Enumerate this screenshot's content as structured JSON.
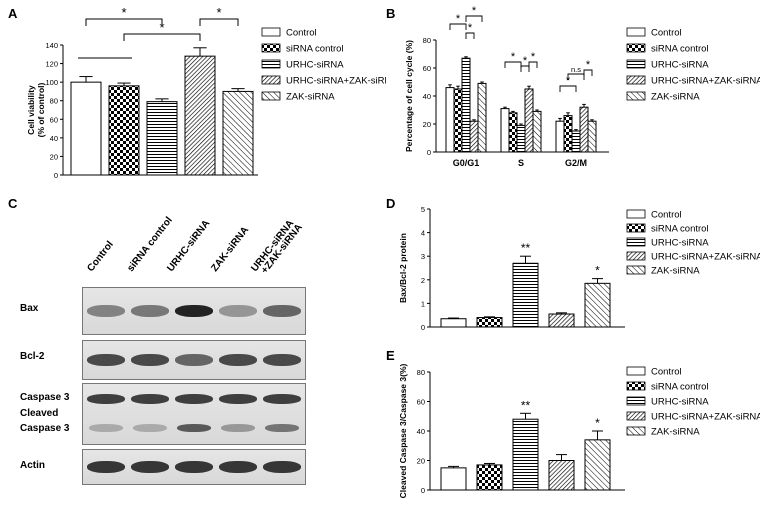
{
  "panel_letters": {
    "A": "A",
    "B": "B",
    "C": "C",
    "D": "D",
    "E": "E"
  },
  "legend_items": [
    {
      "label": "Control",
      "pattern": "none"
    },
    {
      "label": "siRNA control",
      "pattern": "check"
    },
    {
      "label": "URHC-siRNA",
      "pattern": "horiz"
    },
    {
      "label": "URHC-siRNA+ZAK-siRNA",
      "pattern": "dense"
    },
    {
      "label": "ZAK-siRNA",
      "pattern": "diag"
    }
  ],
  "chart_data": [
    {
      "id": "A",
      "type": "bar",
      "ylabel": "Cell viability\n(% of control)",
      "ylim": [
        0,
        140
      ],
      "yticks": [
        0,
        20,
        40,
        60,
        80,
        100,
        120,
        140
      ],
      "categories": [
        "Control",
        "siRNA control",
        "URHC-siRNA",
        "URHC-siRNA+ZAK-siRNA",
        "ZAK-siRNA"
      ],
      "values": [
        100,
        96,
        79,
        128,
        90
      ],
      "errors": [
        6,
        3,
        3,
        9,
        3
      ],
      "significance": [
        {
          "from": 0,
          "to": 2,
          "label": "*"
        },
        {
          "from": 1,
          "to": 3,
          "label": "*"
        },
        {
          "from": 3,
          "to": 4,
          "label": "*"
        }
      ]
    },
    {
      "id": "B",
      "type": "bar",
      "ylabel": "Percentage of cell cycle (%)",
      "ylim": [
        0,
        80
      ],
      "yticks": [
        0,
        20,
        40,
        60,
        80
      ],
      "groups": [
        "G0/G1",
        "S",
        "G2/M"
      ],
      "series": [
        {
          "name": "Control",
          "values": [
            46,
            31,
            22
          ],
          "errors": [
            2,
            1,
            2
          ]
        },
        {
          "name": "siRNA control",
          "values": [
            45,
            28,
            26
          ],
          "errors": [
            2,
            1,
            2
          ]
        },
        {
          "name": "URHC-siRNA",
          "values": [
            67,
            19,
            15
          ],
          "errors": [
            1,
            1,
            1
          ]
        },
        {
          "name": "URHC-siRNA+ZAK-siRNA",
          "values": [
            22,
            45,
            32
          ],
          "errors": [
            1,
            2,
            2
          ]
        },
        {
          "name": "ZAK-siRNA",
          "values": [
            49,
            29,
            22
          ],
          "errors": [
            1,
            1,
            1
          ]
        }
      ],
      "significance": [
        {
          "group": 0,
          "from": 0,
          "to": 2,
          "label": "*"
        },
        {
          "group": 0,
          "from": 2,
          "to": 3,
          "label": "*"
        },
        {
          "group": 0,
          "from": 2,
          "to": 4,
          "label": "*"
        },
        {
          "group": 1,
          "from": 0,
          "to": 2,
          "label": "*"
        },
        {
          "group": 1,
          "from": 2,
          "to": 3,
          "label": "*"
        },
        {
          "group": 1,
          "from": 3,
          "to": 4,
          "label": "*"
        },
        {
          "group": 2,
          "from": 0,
          "to": 2,
          "label": "*"
        },
        {
          "group": 2,
          "from": 1,
          "to": 3,
          "label": "n.s"
        },
        {
          "group": 2,
          "from": 3,
          "to": 4,
          "label": "*"
        }
      ]
    },
    {
      "id": "D",
      "type": "bar",
      "ylabel": "Bax/Bcl-2 protein",
      "ylim": [
        0,
        5
      ],
      "yticks": [
        0,
        1,
        2,
        3,
        4,
        5
      ],
      "categories": [
        "Control",
        "siRNA control",
        "URHC-siRNA",
        "URHC-siRNA+ZAK-siRNA",
        "ZAK-siRNA"
      ],
      "values": [
        0.35,
        0.4,
        2.7,
        0.55,
        1.85
      ],
      "errors": [
        0.03,
        0.03,
        0.3,
        0.05,
        0.2
      ],
      "labels": [
        "",
        "",
        "**",
        "",
        "*"
      ]
    },
    {
      "id": "E",
      "type": "bar",
      "ylabel": "Cleaved Caspase 3/Caspase 3(%)",
      "ylim": [
        0,
        80
      ],
      "yticks": [
        0,
        20,
        40,
        60,
        80
      ],
      "categories": [
        "Control",
        "siRNA control",
        "URHC-siRNA",
        "URHC-siRNA+ZAK-siRNA",
        "ZAK-siRNA"
      ],
      "values": [
        15,
        17,
        48,
        20,
        34
      ],
      "errors": [
        1,
        1,
        4,
        4,
        6
      ],
      "labels": [
        "",
        "",
        "**",
        "",
        "*"
      ]
    }
  ],
  "blot": {
    "lanes": [
      "Control",
      "siRNA control",
      "URHC-siRNA",
      "ZAK-siRNA",
      "URHC-siRNA\n+ZAK-siRNA"
    ],
    "rows": [
      {
        "label": "Bax",
        "intensity": [
          0.45,
          0.5,
          0.95,
          0.35,
          0.6
        ]
      },
      {
        "label": "Bcl-2",
        "intensity": [
          0.75,
          0.75,
          0.6,
          0.75,
          0.75
        ]
      },
      {
        "label": "Caspase 3\nCleaved\nCaspase 3",
        "intensity": [
          0.8,
          0.8,
          0.8,
          0.8,
          0.8
        ],
        "lower": [
          0.25,
          0.25,
          0.7,
          0.35,
          0.55
        ]
      },
      {
        "label": "Actin",
        "intensity": [
          0.85,
          0.85,
          0.85,
          0.85,
          0.85
        ]
      }
    ]
  }
}
